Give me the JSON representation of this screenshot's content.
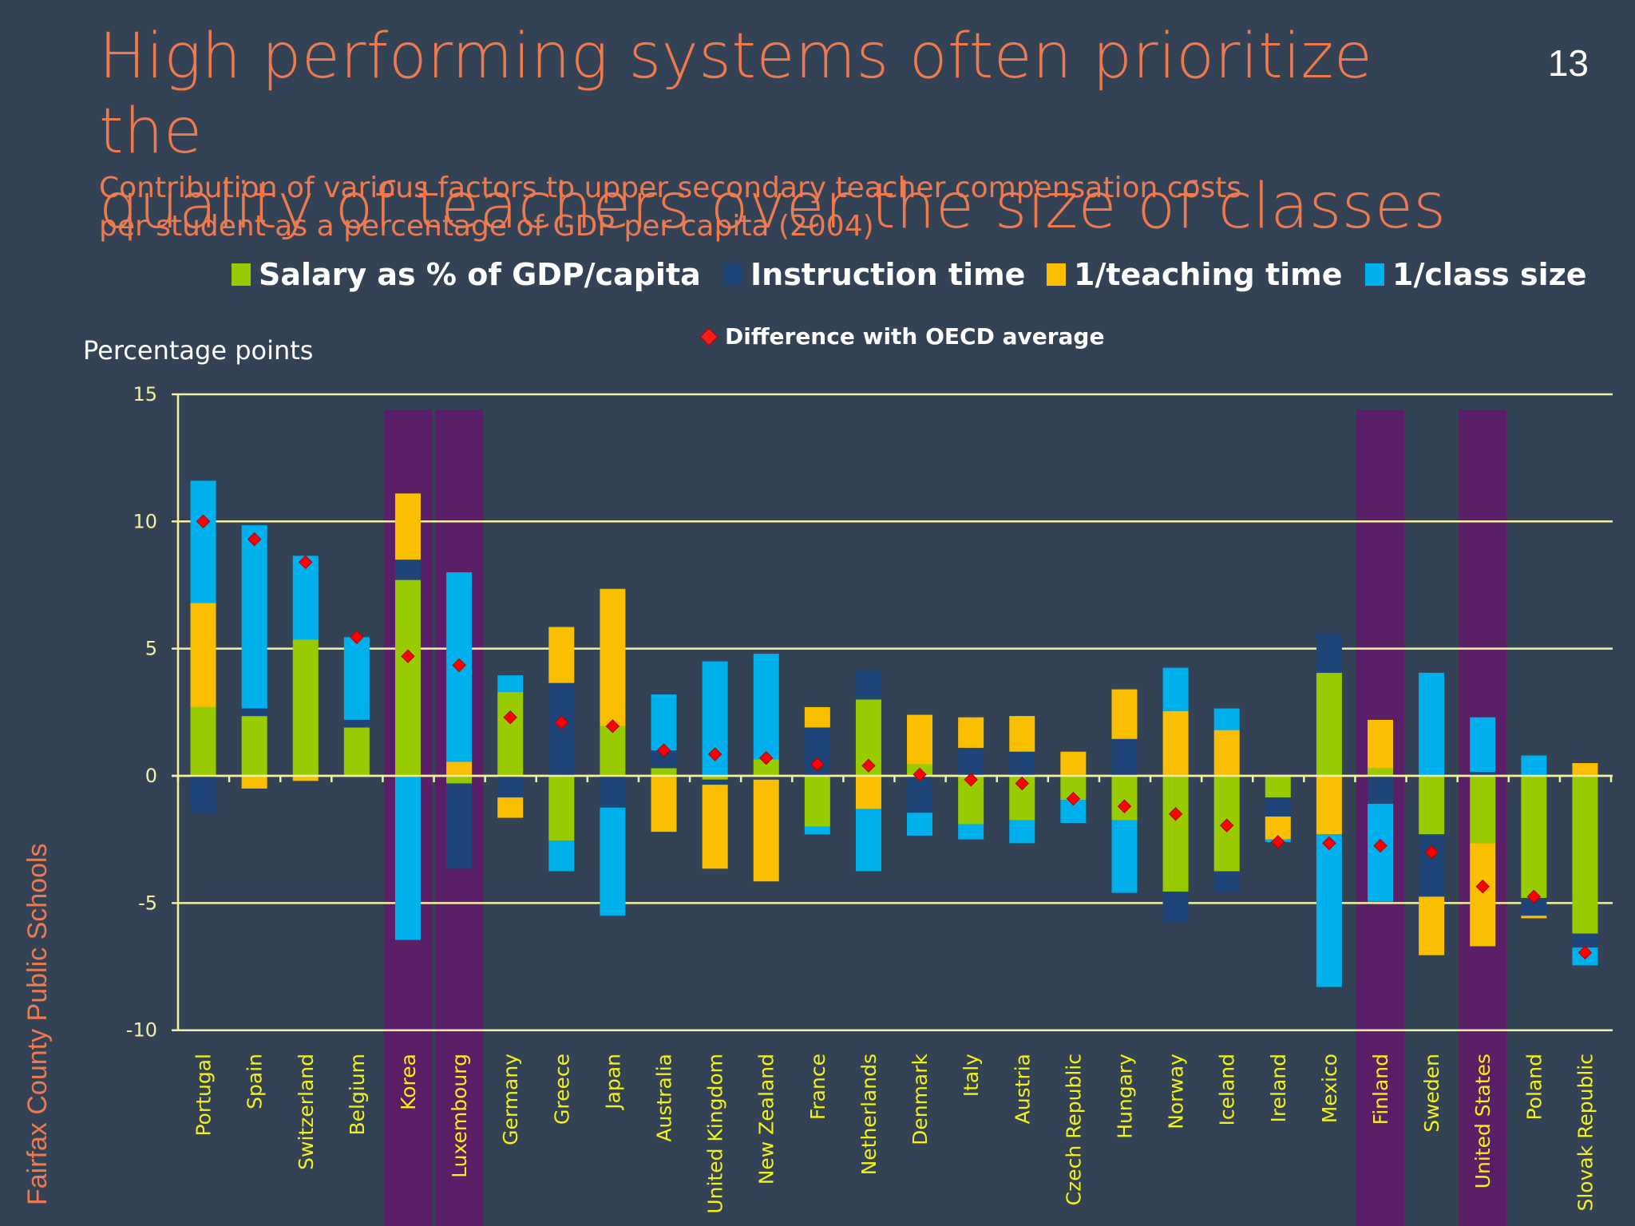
{
  "slide": {
    "title_line1": "High performing systems often prioritize the",
    "title_line2": "quality of teachers over the size of classes",
    "subtitle_line1": "Contribution of various factors to upper secondary teacher compensation costs",
    "subtitle_line2": "per student as a percentage of GDP per capita (2004)",
    "slide_number": "13",
    "side_text": "Fairfax County Public Schools"
  },
  "chart_data": {
    "type": "bar",
    "stacked": true,
    "title": "Contribution of various factors to upper secondary teacher compensation costs per student as a percentage of GDP per capita (2004)",
    "xlabel": "",
    "ylabel": "Percentage points",
    "ylim": [
      -10,
      15
    ],
    "yticks": [
      15,
      10,
      5,
      0,
      -5,
      -10
    ],
    "grid": true,
    "legend_position": "top",
    "colors": {
      "salary": "#99cc00",
      "instruction": "#1f4478",
      "teaching": "#f9bf00",
      "classsize": "#00b0ec",
      "diamond": "#ff0000",
      "highlight": "#5a1f66",
      "grid": "#f5f0a0"
    },
    "legend": [
      {
        "key": "salary",
        "label": "Salary as % of GDP/capita"
      },
      {
        "key": "instruction",
        "label": "Instruction time"
      },
      {
        "key": "teaching",
        "label": "1/teaching time"
      },
      {
        "key": "classsize",
        "label": "1/class size"
      },
      {
        "key": "diamond",
        "label": "Difference with OECD average"
      }
    ],
    "categories": [
      "Portugal",
      "Spain",
      "Switzerland",
      "Belgium",
      "Korea",
      "Luxembourg",
      "Germany",
      "Greece",
      "Japan",
      "Australia",
      "United Kingdom",
      "New Zealand",
      "France",
      "Netherlands",
      "Denmark",
      "Italy",
      "Austria",
      "Czech Republic",
      "Hungary",
      "Norway",
      "Iceland",
      "Ireland",
      "Mexico",
      "Finland",
      "Sweden",
      "United States",
      "Poland",
      "Slovak Republic"
    ],
    "highlighted": [
      "Korea",
      "Luxembourg",
      "Finland",
      "United States"
    ],
    "series": [
      {
        "name": "Salary as % of GDP/capita",
        "key": "salary",
        "values": [
          2.7,
          2.35,
          5.35,
          1.9,
          7.7,
          -0.3,
          3.3,
          -2.55,
          1.95,
          0.3,
          -0.15,
          0.65,
          -2.0,
          3.0,
          0.45,
          -1.9,
          -1.75,
          -0.95,
          -1.75,
          -4.55,
          -3.75,
          -0.85,
          4.05,
          0.3,
          -2.3,
          -2.65,
          -4.8,
          -6.2
        ]
      },
      {
        "name": "Instruction time",
        "key": "instruction",
        "values": [
          -1.5,
          0.3,
          0,
          0.3,
          0.8,
          -3.35,
          -0.85,
          3.65,
          -1.25,
          0.7,
          -0.2,
          0,
          1.9,
          1.15,
          -1.45,
          1.1,
          0.95,
          0,
          1.45,
          -1.2,
          -0.8,
          -0.75,
          1.55,
          -1.1,
          -2.45,
          0.15,
          -0.7,
          -0.55
        ]
      },
      {
        "name": "1/teaching time",
        "key": "teaching",
        "values": [
          4.1,
          -0.5,
          -0.2,
          0,
          2.6,
          0.55,
          -0.8,
          2.2,
          5.4,
          -2.2,
          -3.3,
          -4.0,
          0.8,
          -1.3,
          1.95,
          1.2,
          1.4,
          0.95,
          1.95,
          2.55,
          1.8,
          -0.9,
          -2.3,
          1.9,
          -2.3,
          -4.05,
          -0.1,
          0.5
        ]
      },
      {
        "name": "1/class size",
        "key": "classsize",
        "values": [
          4.8,
          7.2,
          3.3,
          3.25,
          -6.45,
          7.45,
          0.65,
          -1.2,
          -4.25,
          2.2,
          4.5,
          4.15,
          -0.3,
          -2.45,
          -0.9,
          -0.6,
          -0.9,
          -0.9,
          -2.85,
          1.7,
          0.85,
          -0.1,
          -6.0,
          -3.85,
          4.05,
          2.15,
          0.8,
          -0.7
        ]
      }
    ],
    "segments": [
      {
        "salary": [
          0,
          2.7
        ],
        "instruction": [
          0,
          -1.5
        ],
        "teaching": [
          2.7,
          6.8
        ],
        "classsize": [
          6.8,
          11.6
        ]
      },
      {
        "salary": [
          0,
          2.35
        ],
        "instruction": [
          2.35,
          2.65
        ],
        "teaching": [
          0,
          -0.5
        ],
        "classsize": [
          2.65,
          9.85
        ]
      },
      {
        "salary": [
          0,
          5.35
        ],
        "instruction": null,
        "teaching": [
          0,
          -0.2
        ],
        "classsize": [
          5.35,
          8.65
        ]
      },
      {
        "salary": [
          0,
          1.9
        ],
        "instruction": [
          1.9,
          2.2
        ],
        "teaching": null,
        "classsize": [
          2.2,
          5.45
        ]
      },
      {
        "salary": [
          0,
          7.7
        ],
        "instruction": [
          7.7,
          8.5
        ],
        "teaching": [
          8.5,
          11.1
        ],
        "classsize": [
          0,
          -6.45
        ]
      },
      {
        "salary": [
          0,
          -0.3
        ],
        "instruction": [
          -0.3,
          -3.65
        ],
        "teaching": [
          0,
          0.55
        ],
        "classsize": [
          0.55,
          8.0
        ]
      },
      {
        "salary": [
          0,
          3.3
        ],
        "instruction": [
          0,
          -0.85
        ],
        "teaching": [
          -0.85,
          -1.65
        ],
        "classsize": [
          3.3,
          3.95
        ]
      },
      {
        "salary": [
          0,
          -2.55
        ],
        "instruction": [
          0,
          3.65
        ],
        "teaching": [
          3.65,
          5.85
        ],
        "classsize": [
          -2.55,
          -3.75
        ]
      },
      {
        "salary": [
          0,
          1.95
        ],
        "instruction": [
          0,
          -1.25
        ],
        "teaching": [
          1.95,
          7.35
        ],
        "classsize": [
          -1.25,
          -5.5
        ]
      },
      {
        "salary": [
          0,
          0.3
        ],
        "instruction": [
          0.3,
          1.0
        ],
        "teaching": [
          0,
          -2.2
        ],
        "classsize": [
          1.0,
          3.2
        ]
      },
      {
        "salary": [
          0,
          -0.15
        ],
        "instruction": [
          -0.15,
          -0.35
        ],
        "teaching": [
          -0.35,
          -3.65
        ],
        "classsize": [
          0,
          4.5
        ]
      },
      {
        "salary": [
          0,
          0.65
        ],
        "instruction": null,
        "teaching": [
          -0.15,
          -4.15
        ],
        "classsize": [
          0.65,
          4.8
        ]
      },
      {
        "salary": [
          0,
          -2.0
        ],
        "instruction": [
          0,
          1.9
        ],
        "teaching": [
          1.9,
          2.7
        ],
        "classsize": [
          -2.0,
          -2.3
        ]
      },
      {
        "salary": [
          0,
          3.0
        ],
        "instruction": [
          3.0,
          4.15
        ],
        "teaching": [
          0,
          -1.3
        ],
        "classsize": [
          -1.3,
          -3.75
        ]
      },
      {
        "salary": [
          0,
          0.45
        ],
        "instruction": [
          0,
          -1.45
        ],
        "teaching": [
          0.45,
          2.4
        ],
        "classsize": [
          -1.45,
          -2.35
        ]
      },
      {
        "salary": [
          0,
          -1.9
        ],
        "instruction": [
          0,
          1.1
        ],
        "teaching": [
          1.1,
          2.3
        ],
        "classsize": [
          -1.9,
          -2.5
        ]
      },
      {
        "salary": [
          0,
          -1.75
        ],
        "instruction": [
          0,
          0.95
        ],
        "teaching": [
          0.95,
          2.35
        ],
        "classsize": [
          -1.75,
          -2.65
        ]
      },
      {
        "salary": [
          0,
          -0.95
        ],
        "instruction": null,
        "teaching": [
          0,
          0.95
        ],
        "classsize": [
          -0.95,
          -1.85
        ]
      },
      {
        "salary": [
          0,
          -1.75
        ],
        "instruction": [
          0,
          1.45
        ],
        "teaching": [
          1.45,
          3.4
        ],
        "classsize": [
          -1.75,
          -4.6
        ]
      },
      {
        "salary": [
          0,
          -4.55
        ],
        "instruction": [
          -4.55,
          -5.75
        ],
        "teaching": [
          0,
          2.55
        ],
        "classsize": [
          2.55,
          4.25
        ]
      },
      {
        "salary": [
          0,
          -3.75
        ],
        "instruction": [
          -3.75,
          -4.55
        ],
        "teaching": [
          0,
          1.8
        ],
        "classsize": [
          1.8,
          2.65
        ]
      },
      {
        "salary": [
          0,
          -0.85
        ],
        "instruction": [
          -0.85,
          -1.6
        ],
        "teaching": [
          -1.6,
          -2.5
        ],
        "classsize": [
          -2.5,
          -2.6
        ]
      },
      {
        "salary": [
          0,
          4.05
        ],
        "instruction": [
          4.05,
          5.6
        ],
        "teaching": [
          0,
          -2.3
        ],
        "classsize": [
          -2.3,
          -8.3
        ]
      },
      {
        "salary": [
          0,
          0.3
        ],
        "instruction": [
          0,
          -1.1
        ],
        "teaching": [
          0.3,
          2.2
        ],
        "classsize": [
          -1.1,
          -4.95
        ]
      },
      {
        "salary": [
          0,
          -2.3
        ],
        "instruction": [
          -2.3,
          -4.75
        ],
        "teaching": [
          -4.75,
          -7.05
        ],
        "classsize": [
          0,
          4.05
        ]
      },
      {
        "salary": [
          0,
          -2.65
        ],
        "instruction": [
          0,
          0.15
        ],
        "teaching": [
          -2.65,
          -6.7
        ],
        "classsize": [
          0.15,
          2.3
        ]
      },
      {
        "salary": [
          0,
          -4.8
        ],
        "instruction": [
          -4.8,
          -5.5
        ],
        "teaching": [
          -5.5,
          -5.6
        ],
        "classsize": [
          0,
          0.8
        ]
      },
      {
        "salary": [
          0,
          -6.2
        ],
        "instruction": [
          -6.2,
          -6.75
        ],
        "teaching": [
          0,
          0.5
        ],
        "classsize": [
          -6.75,
          -7.45
        ]
      }
    ],
    "difference_with_oecd_average": [
      10.0,
      9.3,
      8.4,
      5.45,
      4.7,
      4.35,
      2.3,
      2.1,
      1.95,
      1.0,
      0.85,
      0.7,
      0.45,
      0.4,
      0.05,
      -0.15,
      -0.3,
      -0.9,
      -1.2,
      -1.5,
      -1.95,
      -2.6,
      -2.65,
      -2.75,
      -3.0,
      -4.35,
      -4.75,
      -6.95
    ]
  }
}
